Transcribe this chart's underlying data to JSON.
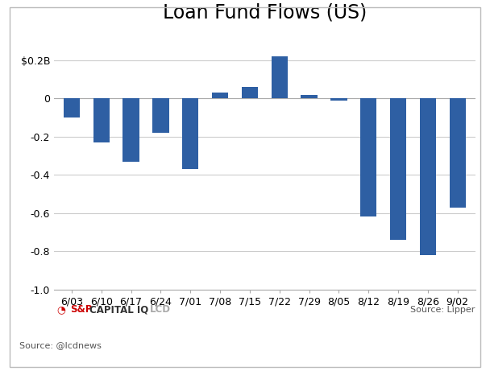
{
  "title": "Loan Fund Flows (US)",
  "categories": [
    "6/03",
    "6/10",
    "6/17",
    "6/24",
    "7/01",
    "7/08",
    "7/15",
    "7/22",
    "7/29",
    "8/05",
    "8/12",
    "8/19",
    "8/26",
    "9/02"
  ],
  "values": [
    -0.1,
    -0.23,
    -0.33,
    -0.18,
    -0.37,
    0.03,
    0.06,
    0.22,
    0.02,
    -0.01,
    -0.62,
    -0.74,
    -0.82,
    -0.57
  ],
  "bar_color": "#2E5FA3",
  "ylim": [
    -1.0,
    0.36
  ],
  "ytick_values": [
    -1.0,
    -0.8,
    -0.6,
    -0.4,
    -0.2,
    0.0,
    0.2
  ],
  "ytick_labels": [
    "-1.0",
    "-0.8",
    "-0.6",
    "-0.4",
    "-0.2",
    "0",
    "$0.2B"
  ],
  "background_color": "#ffffff",
  "plot_bg_color": "#ffffff",
  "footer_bg": "#e0e0e0",
  "source_text": "Source: @lcdnews",
  "source_right": "Source: Lipper",
  "grid_color": "#cccccc",
  "title_fontsize": 17,
  "tick_fontsize": 9,
  "bar_width": 0.55,
  "border_color": "#aaaaaa"
}
